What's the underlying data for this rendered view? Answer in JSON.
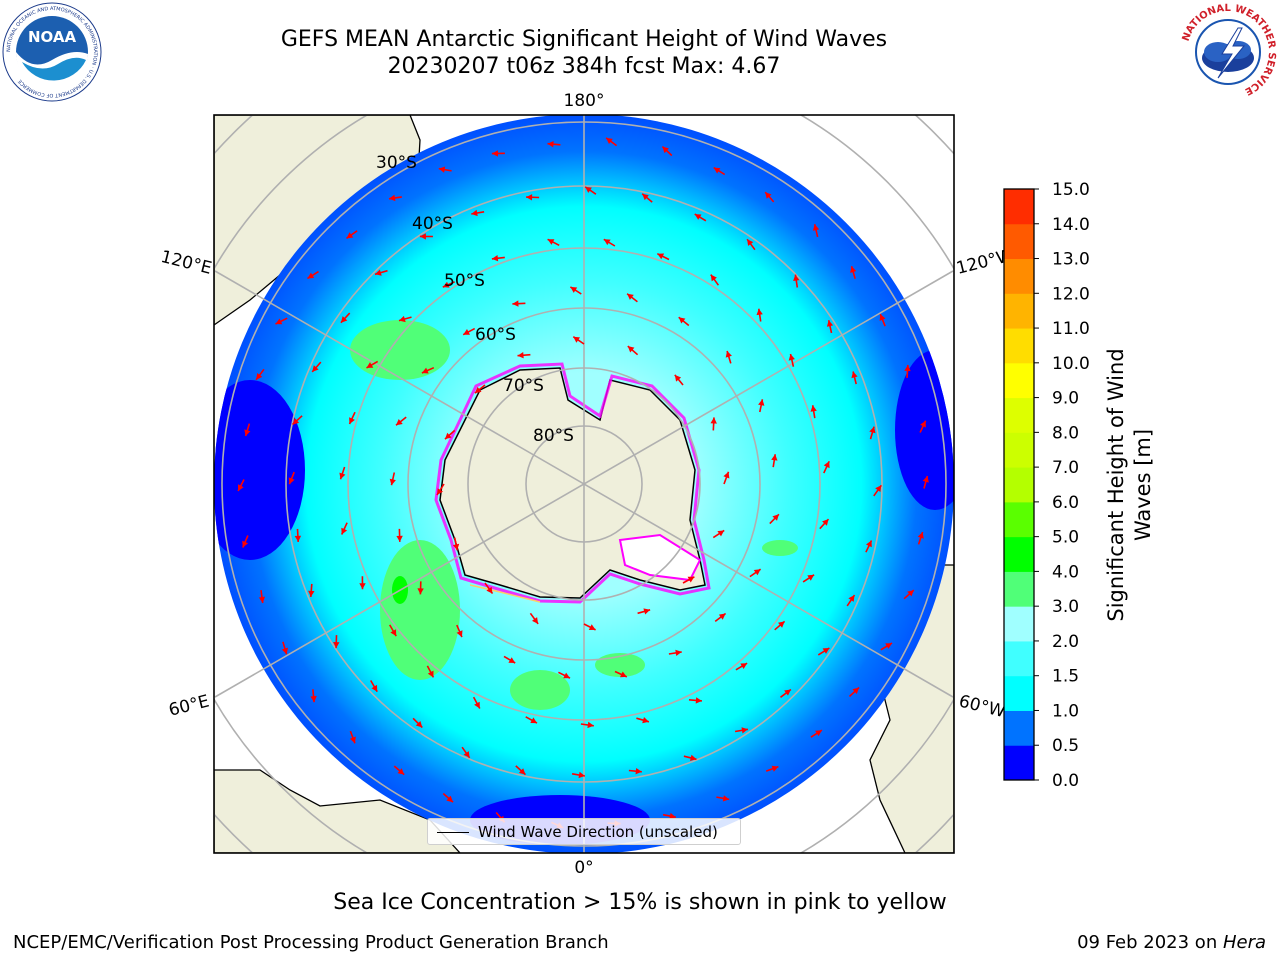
{
  "header": {
    "title_line1": "GEFS MEAN Antarctic Significant Height of Wind Waves",
    "title_line2": "20230207 t06z 384h fcst   Max: 4.67"
  },
  "logos": {
    "noaa_text": "NOAA",
    "noaa_ring_text": "NATIONAL OCEANIC AND ATMOSPHERIC ADMINISTRATION · U.S. DEPARTMENT OF COMMERCE",
    "nws_ring_text": "NATIONAL WEATHER SERVICE"
  },
  "map": {
    "longitude_labels": {
      "top": "180°",
      "bottom": "0°",
      "left_upper": "120°E",
      "left_lower": "60°E",
      "right_upper": "120°W",
      "right_lower": "60°W"
    },
    "latitude_labels": [
      "30°S",
      "40°S",
      "50°S",
      "60°S",
      "70°S",
      "80°S"
    ],
    "colors": {
      "land": "#efefdb",
      "ocean_low": "#0000ff",
      "ocean_mid": "#00ffff",
      "grid": "#b0b0b0",
      "arrow": "#ff0000",
      "sea_ice": "#ff00ff"
    }
  },
  "legend": {
    "label": "Wind Wave Direction (unscaled)"
  },
  "colorbar": {
    "label_line1": "Significant Height of Wind",
    "label_line2": "Waves [m]",
    "ticks": [
      "0.0",
      "0.5",
      "1.0",
      "1.5",
      "2.0",
      "3.0",
      "4.0",
      "5.0",
      "6.0",
      "7.0",
      "8.0",
      "9.0",
      "10.0",
      "11.0",
      "12.0",
      "13.0",
      "14.0",
      "15.0"
    ],
    "colors": [
      "#0000ff",
      "#0073ff",
      "#00ffff",
      "#40ffff",
      "#a0ffff",
      "#50ff78",
      "#00ff00",
      "#5aff00",
      "#b4ff00",
      "#ccff00",
      "#ddff00",
      "#ffff00",
      "#ffdd00",
      "#ffb400",
      "#ff8c00",
      "#ff5a00",
      "#ff2d00"
    ]
  },
  "subtitle": "Sea Ice Concentration > 15% is shown in pink to yellow",
  "footer": {
    "left": "NCEP/EMC/Verification Post Processing Product Generation Branch",
    "right_date": "09 Feb 2023 on ",
    "right_host": "Hera"
  }
}
